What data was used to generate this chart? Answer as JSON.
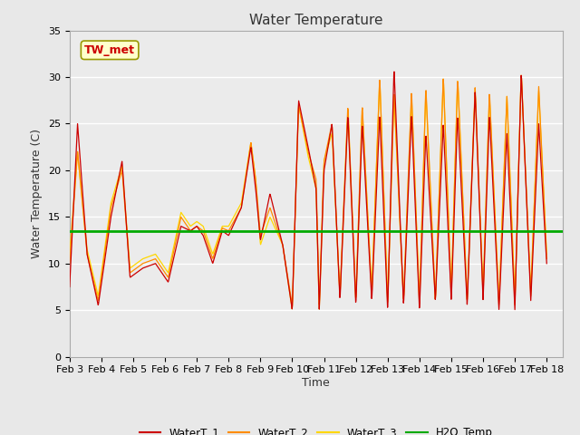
{
  "title": "Water Temperature",
  "ylabel": "Water Temperature (C)",
  "xlabel": "Time",
  "ylim": [
    0,
    35
  ],
  "h2o_temp": 13.5,
  "annotation_text": "TW_met",
  "legend_entries": [
    "WaterT_1",
    "WaterT_2",
    "WaterT_3",
    "H2O_Temp"
  ],
  "colors": {
    "WaterT_1": "#CC0000",
    "WaterT_2": "#FF8C00",
    "WaterT_3": "#FFD700",
    "H2O_Temp": "#00AA00"
  },
  "xtick_labels": [
    "Feb 3",
    "Feb 4",
    "Feb 5",
    "Feb 6",
    "Feb 7",
    "Feb 8",
    "Feb 9",
    "Feb 10",
    "Feb 11",
    "Feb 12",
    "Feb 13",
    "Feb 14",
    "Feb 15",
    "Feb 16",
    "Feb 17",
    "Feb 18"
  ],
  "ytick_labels": [
    0,
    5,
    10,
    15,
    20,
    25,
    30,
    35
  ],
  "background_color": "#E8E8E8",
  "plot_bg_color": "#EBEBEB",
  "title_fontsize": 11,
  "axis_fontsize": 9,
  "tick_fontsize": 8
}
